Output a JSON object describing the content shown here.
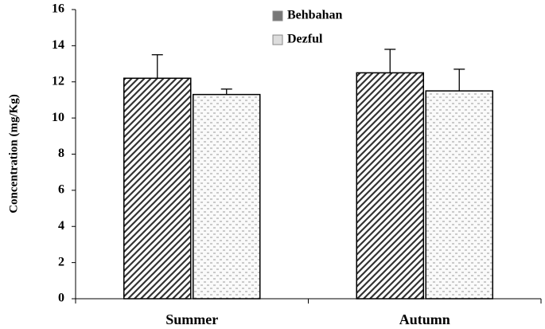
{
  "chart_data": {
    "type": "bar",
    "y_label": "Concentration (mg/Kg)",
    "categories": [
      "Summer",
      "Autumn"
    ],
    "series": [
      {
        "name": "Behbahan",
        "color": "#333333",
        "values": [
          12.2,
          12.5
        ],
        "errors": [
          1.3,
          1.3
        ]
      },
      {
        "name": "Dezful",
        "color": "#9a9a9a",
        "values": [
          11.3,
          11.5
        ],
        "errors": [
          0.3,
          1.2
        ]
      }
    ],
    "ylim": [
      0,
      16
    ],
    "yticks": [
      0,
      2,
      4,
      6,
      8,
      10,
      12,
      14,
      16
    ]
  }
}
